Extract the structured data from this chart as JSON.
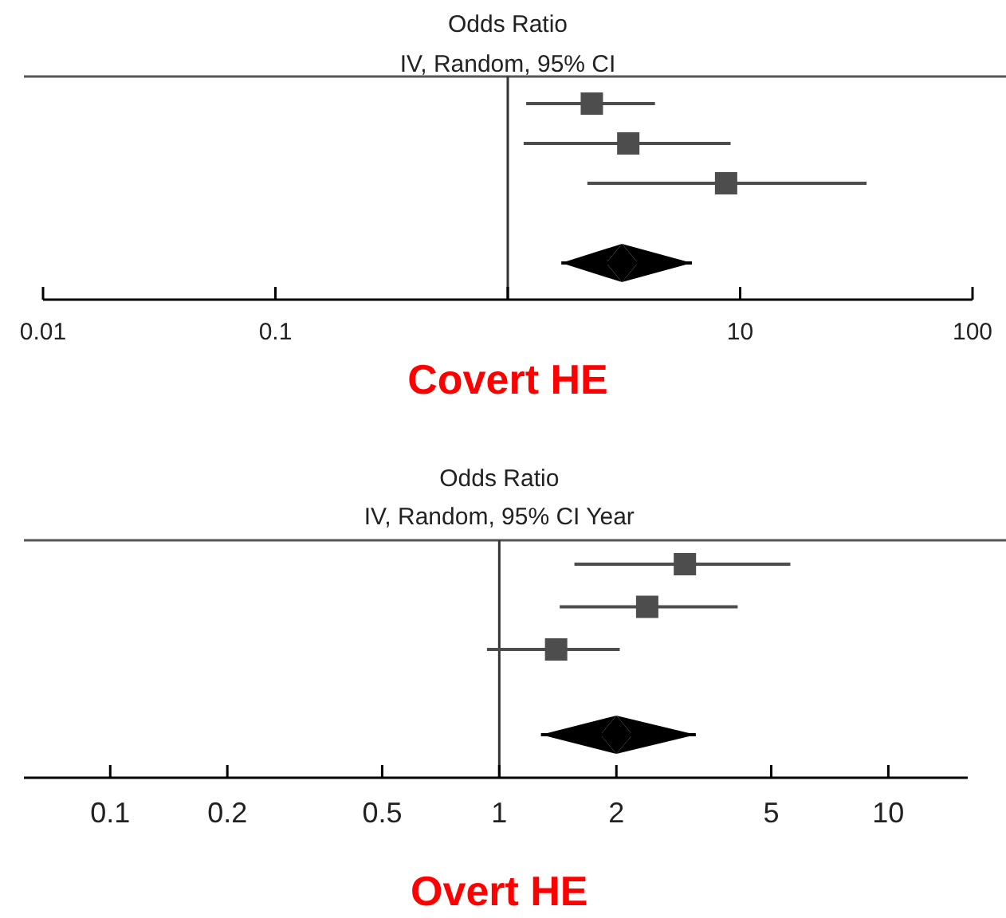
{
  "chart_data": [
    {
      "type": "scatter",
      "title": "Odds Ratio",
      "subtitle": "IV, Random, 95% CI",
      "xlabel": "Covert HE",
      "categories": [
        null,
        null,
        null,
        null,
        null
      ],
      "orientation": "horizontal",
      "log": "x",
      "xlim": [
        0.01,
        100
      ],
      "xticks": [
        0.01,
        0.1,
        {
          "value": 1,
          "label": null
        },
        10,
        100
      ],
      "tick_labels": "x",
      "grid": false,
      "ref_lines": [
        {
          "axis": "x",
          "value": 1,
          "color": "#333333"
        }
      ],
      "series": [
        {
          "marker": "square",
          "color": "#4d4d4d",
          "values": [
            2.3,
            3.3,
            8.7,
            null,
            null
          ],
          "errors": [
            [
              1.2,
              4.3
            ],
            [
              1.17,
              9.1
            ],
            [
              2.2,
              35
            ],
            null,
            null
          ]
        },
        {
          "marker": "diamond",
          "color": "#000000",
          "values": [
            null,
            null,
            null,
            null,
            3.1
          ],
          "errors": [
            null,
            null,
            null,
            null,
            [
              1.7,
              6.2
            ]
          ]
        }
      ]
    },
    {
      "type": "scatter",
      "title": "Odds Ratio",
      "subtitle": "IV, Random, 95% CI Year",
      "xlabel": "Overt HE",
      "categories": [
        null,
        null,
        null,
        null,
        null
      ],
      "orientation": "horizontal",
      "log": "x",
      "xlim": [
        0.06,
        16
      ],
      "xticks": [
        0.1,
        0.2,
        0.5,
        1,
        2,
        5,
        10
      ],
      "tick_labels": "x",
      "grid": false,
      "ref_lines": [
        {
          "axis": "x",
          "value": 1,
          "color": "#333333"
        }
      ],
      "series": [
        {
          "marker": "square",
          "color": "#4d4d4d",
          "values": [
            3.0,
            2.4,
            1.4,
            null,
            null
          ],
          "errors": [
            [
              1.56,
              5.6
            ],
            [
              1.43,
              4.1
            ],
            [
              0.93,
              2.04
            ],
            null,
            null
          ]
        },
        {
          "marker": "diamond",
          "color": "#000000",
          "values": [
            null,
            null,
            null,
            null,
            2.0
          ],
          "errors": [
            null,
            null,
            null,
            null,
            [
              1.28,
              3.2
            ]
          ]
        }
      ]
    }
  ]
}
